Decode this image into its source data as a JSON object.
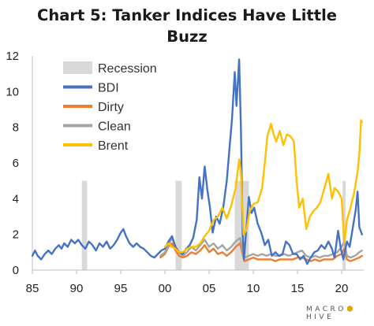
{
  "title_line1": "Chart 5: Tanker Indices Have Little",
  "title_line2": "Buzz",
  "logo": {
    "left": "MACRO",
    "right": "HIVE"
  },
  "chart_data": {
    "type": "line",
    "xlim": [
      1985,
      2022.5
    ],
    "ylim": [
      0,
      12
    ],
    "x_ticks": [
      {
        "value": 1985,
        "label": "85"
      },
      {
        "value": 1990,
        "label": "90"
      },
      {
        "value": 1995,
        "label": "95"
      },
      {
        "value": 2000,
        "label": "00"
      },
      {
        "value": 2005,
        "label": "05"
      },
      {
        "value": 2010,
        "label": "10"
      },
      {
        "value": 2015,
        "label": "15"
      },
      {
        "value": 2020,
        "label": "20"
      }
    ],
    "y_ticks": [
      0,
      2,
      4,
      6,
      8,
      10,
      12
    ],
    "grid": false,
    "legend_position": "top-left",
    "recessions": [
      [
        1990.6,
        1991.2
      ],
      [
        2001.2,
        2001.9
      ],
      [
        2007.9,
        2009.5
      ],
      [
        2020.1,
        2020.4
      ]
    ],
    "recession_label": "Recession",
    "recession_color": "#d9d9d9",
    "series": [
      {
        "name": "BDI",
        "color": "#4472c4",
        "points": [
          [
            1985.0,
            0.8
          ],
          [
            1985.3,
            1.1
          ],
          [
            1985.6,
            0.8
          ],
          [
            1986.0,
            0.6
          ],
          [
            1986.4,
            0.9
          ],
          [
            1986.8,
            1.1
          ],
          [
            1987.2,
            0.9
          ],
          [
            1987.6,
            1.2
          ],
          [
            1988.0,
            1.4
          ],
          [
            1988.3,
            1.2
          ],
          [
            1988.6,
            1.5
          ],
          [
            1989.0,
            1.3
          ],
          [
            1989.4,
            1.7
          ],
          [
            1989.8,
            1.5
          ],
          [
            1990.2,
            1.7
          ],
          [
            1990.6,
            1.4
          ],
          [
            1991.0,
            1.2
          ],
          [
            1991.4,
            1.6
          ],
          [
            1991.8,
            1.4
          ],
          [
            1992.2,
            1.1
          ],
          [
            1992.6,
            1.5
          ],
          [
            1993.0,
            1.3
          ],
          [
            1993.4,
            1.6
          ],
          [
            1993.8,
            1.2
          ],
          [
            1994.2,
            1.4
          ],
          [
            1994.6,
            1.7
          ],
          [
            1995.0,
            2.1
          ],
          [
            1995.3,
            2.3
          ],
          [
            1995.6,
            1.9
          ],
          [
            1996.0,
            1.5
          ],
          [
            1996.4,
            1.3
          ],
          [
            1996.8,
            1.5
          ],
          [
            1997.2,
            1.3
          ],
          [
            1997.6,
            1.2
          ],
          [
            1998.0,
            1.0
          ],
          [
            1998.4,
            0.8
          ],
          [
            1998.8,
            0.7
          ],
          [
            1999.2,
            0.9
          ],
          [
            1999.6,
            1.1
          ],
          [
            2000.0,
            1.2
          ],
          [
            2000.4,
            1.6
          ],
          [
            2000.8,
            1.9
          ],
          [
            2001.2,
            1.3
          ],
          [
            2001.6,
            1.0
          ],
          [
            2002.0,
            0.9
          ],
          [
            2002.4,
            1.2
          ],
          [
            2002.8,
            1.4
          ],
          [
            2003.2,
            1.8
          ],
          [
            2003.6,
            2.8
          ],
          [
            2003.9,
            5.2
          ],
          [
            2004.2,
            4.0
          ],
          [
            2004.5,
            5.8
          ],
          [
            2004.8,
            4.5
          ],
          [
            2005.1,
            3.5
          ],
          [
            2005.4,
            2.1
          ],
          [
            2005.8,
            3.0
          ],
          [
            2006.2,
            2.6
          ],
          [
            2006.6,
            3.5
          ],
          [
            2007.0,
            5.0
          ],
          [
            2007.3,
            6.8
          ],
          [
            2007.6,
            8.5
          ],
          [
            2007.9,
            11.1
          ],
          [
            2008.1,
            9.2
          ],
          [
            2008.4,
            11.8
          ],
          [
            2008.6,
            8.0
          ],
          [
            2008.8,
            2.0
          ],
          [
            2008.95,
            0.6
          ],
          [
            2009.2,
            2.2
          ],
          [
            2009.5,
            4.1
          ],
          [
            2009.8,
            3.2
          ],
          [
            2010.1,
            3.5
          ],
          [
            2010.5,
            2.6
          ],
          [
            2010.9,
            2.1
          ],
          [
            2011.3,
            1.4
          ],
          [
            2011.7,
            1.7
          ],
          [
            2012.1,
            0.8
          ],
          [
            2012.5,
            1.0
          ],
          [
            2012.9,
            0.8
          ],
          [
            2013.3,
            0.9
          ],
          [
            2013.7,
            1.6
          ],
          [
            2014.1,
            1.4
          ],
          [
            2014.5,
            0.9
          ],
          [
            2014.9,
            0.9
          ],
          [
            2015.3,
            0.6
          ],
          [
            2015.7,
            0.8
          ],
          [
            2016.1,
            0.35
          ],
          [
            2016.5,
            0.7
          ],
          [
            2016.9,
            1.0
          ],
          [
            2017.3,
            1.1
          ],
          [
            2017.7,
            1.4
          ],
          [
            2018.1,
            1.2
          ],
          [
            2018.5,
            1.6
          ],
          [
            2018.9,
            1.2
          ],
          [
            2019.2,
            0.7
          ],
          [
            2019.6,
            2.2
          ],
          [
            2019.9,
            1.2
          ],
          [
            2020.2,
            0.6
          ],
          [
            2020.6,
            1.6
          ],
          [
            2020.9,
            1.3
          ],
          [
            2021.3,
            2.5
          ],
          [
            2021.6,
            3.4
          ],
          [
            2021.8,
            4.4
          ],
          [
            2022.0,
            2.4
          ],
          [
            2022.3,
            2.0
          ]
        ]
      },
      {
        "name": "Dirty",
        "color": "#ed7d31",
        "points": [
          [
            1999.5,
            0.7
          ],
          [
            2000.0,
            0.9
          ],
          [
            2000.4,
            1.3
          ],
          [
            2000.8,
            1.5
          ],
          [
            2001.2,
            1.1
          ],
          [
            2001.6,
            0.8
          ],
          [
            2002.0,
            0.7
          ],
          [
            2002.5,
            0.8
          ],
          [
            2003.0,
            1.0
          ],
          [
            2003.5,
            0.9
          ],
          [
            2004.0,
            1.1
          ],
          [
            2004.5,
            1.4
          ],
          [
            2005.0,
            1.0
          ],
          [
            2005.5,
            1.2
          ],
          [
            2006.0,
            0.9
          ],
          [
            2006.5,
            1.0
          ],
          [
            2007.0,
            0.8
          ],
          [
            2007.5,
            1.0
          ],
          [
            2008.0,
            1.3
          ],
          [
            2008.5,
            1.5
          ],
          [
            2009.0,
            0.5
          ],
          [
            2009.5,
            0.6
          ],
          [
            2010.0,
            0.7
          ],
          [
            2010.5,
            0.6
          ],
          [
            2011.0,
            0.6
          ],
          [
            2011.5,
            0.6
          ],
          [
            2012.0,
            0.6
          ],
          [
            2012.5,
            0.5
          ],
          [
            2013.0,
            0.6
          ],
          [
            2013.5,
            0.6
          ],
          [
            2014.0,
            0.6
          ],
          [
            2014.5,
            0.6
          ],
          [
            2015.0,
            0.7
          ],
          [
            2015.5,
            0.7
          ],
          [
            2016.0,
            0.6
          ],
          [
            2016.5,
            0.5
          ],
          [
            2017.0,
            0.6
          ],
          [
            2017.5,
            0.5
          ],
          [
            2018.0,
            0.6
          ],
          [
            2018.5,
            0.6
          ],
          [
            2019.0,
            0.6
          ],
          [
            2019.5,
            0.8
          ],
          [
            2020.0,
            0.9
          ],
          [
            2020.3,
            1.2
          ],
          [
            2020.6,
            0.6
          ],
          [
            2021.0,
            0.5
          ],
          [
            2021.5,
            0.6
          ],
          [
            2022.0,
            0.7
          ],
          [
            2022.3,
            0.8
          ]
        ]
      },
      {
        "name": "Clean",
        "color": "#a5a5a5",
        "points": [
          [
            1999.5,
            0.8
          ],
          [
            2000.0,
            1.0
          ],
          [
            2000.4,
            1.4
          ],
          [
            2000.8,
            1.8
          ],
          [
            2001.2,
            1.3
          ],
          [
            2001.6,
            1.0
          ],
          [
            2002.0,
            0.8
          ],
          [
            2002.5,
            1.0
          ],
          [
            2003.0,
            1.3
          ],
          [
            2003.5,
            1.1
          ],
          [
            2004.0,
            1.4
          ],
          [
            2004.5,
            1.7
          ],
          [
            2005.0,
            1.3
          ],
          [
            2005.5,
            1.5
          ],
          [
            2006.0,
            1.2
          ],
          [
            2006.5,
            1.4
          ],
          [
            2007.0,
            1.1
          ],
          [
            2007.5,
            1.3
          ],
          [
            2008.0,
            1.6
          ],
          [
            2008.5,
            1.8
          ],
          [
            2009.0,
            0.7
          ],
          [
            2009.5,
            0.8
          ],
          [
            2010.0,
            0.9
          ],
          [
            2010.5,
            0.8
          ],
          [
            2011.0,
            0.9
          ],
          [
            2011.5,
            0.8
          ],
          [
            2012.0,
            0.9
          ],
          [
            2012.5,
            0.8
          ],
          [
            2013.0,
            0.8
          ],
          [
            2013.5,
            0.9
          ],
          [
            2014.0,
            0.8
          ],
          [
            2014.5,
            0.9
          ],
          [
            2015.0,
            1.0
          ],
          [
            2015.5,
            1.1
          ],
          [
            2016.0,
            0.8
          ],
          [
            2016.5,
            0.7
          ],
          [
            2017.0,
            0.8
          ],
          [
            2017.5,
            0.7
          ],
          [
            2018.0,
            0.8
          ],
          [
            2018.5,
            0.8
          ],
          [
            2019.0,
            0.9
          ],
          [
            2019.5,
            1.0
          ],
          [
            2020.0,
            1.3
          ],
          [
            2020.3,
            1.6
          ],
          [
            2020.6,
            0.8
          ],
          [
            2021.0,
            0.7
          ],
          [
            2021.5,
            0.8
          ],
          [
            2022.0,
            1.0
          ],
          [
            2022.3,
            1.1
          ]
        ]
      },
      {
        "name": "Brent",
        "color": "#ffc000",
        "points": [
          [
            2000.0,
            1.3
          ],
          [
            2000.4,
            1.5
          ],
          [
            2000.8,
            1.3
          ],
          [
            2001.2,
            1.2
          ],
          [
            2001.6,
            1.0
          ],
          [
            2002.0,
            1.0
          ],
          [
            2002.5,
            1.2
          ],
          [
            2003.0,
            1.3
          ],
          [
            2003.5,
            1.3
          ],
          [
            2004.0,
            1.5
          ],
          [
            2004.5,
            1.9
          ],
          [
            2005.0,
            2.2
          ],
          [
            2005.5,
            2.8
          ],
          [
            2006.0,
            3.0
          ],
          [
            2006.5,
            3.5
          ],
          [
            2007.0,
            2.9
          ],
          [
            2007.5,
            3.6
          ],
          [
            2008.0,
            4.6
          ],
          [
            2008.4,
            6.2
          ],
          [
            2008.6,
            5.5
          ],
          [
            2008.9,
            2.0
          ],
          [
            2009.2,
            2.2
          ],
          [
            2009.6,
            3.3
          ],
          [
            2010.0,
            3.7
          ],
          [
            2010.5,
            3.8
          ],
          [
            2011.0,
            4.6
          ],
          [
            2011.3,
            6.0
          ],
          [
            2011.6,
            7.5
          ],
          [
            2012.0,
            8.2
          ],
          [
            2012.3,
            7.6
          ],
          [
            2012.6,
            7.2
          ],
          [
            2013.0,
            7.8
          ],
          [
            2013.4,
            7.0
          ],
          [
            2013.8,
            7.6
          ],
          [
            2014.2,
            7.5
          ],
          [
            2014.6,
            7.2
          ],
          [
            2014.9,
            5.0
          ],
          [
            2015.2,
            3.5
          ],
          [
            2015.6,
            4.0
          ],
          [
            2016.0,
            2.3
          ],
          [
            2016.4,
            3.0
          ],
          [
            2016.8,
            3.3
          ],
          [
            2017.2,
            3.5
          ],
          [
            2017.6,
            3.8
          ],
          [
            2018.0,
            4.5
          ],
          [
            2018.5,
            5.4
          ],
          [
            2018.9,
            4.0
          ],
          [
            2019.2,
            4.6
          ],
          [
            2019.6,
            4.4
          ],
          [
            2020.0,
            4.0
          ],
          [
            2020.3,
            1.5
          ],
          [
            2020.6,
            2.8
          ],
          [
            2021.0,
            3.5
          ],
          [
            2021.4,
            4.3
          ],
          [
            2021.8,
            5.5
          ],
          [
            2022.0,
            6.5
          ],
          [
            2022.2,
            8.4
          ],
          [
            2022.3,
            8.3
          ]
        ]
      }
    ]
  }
}
